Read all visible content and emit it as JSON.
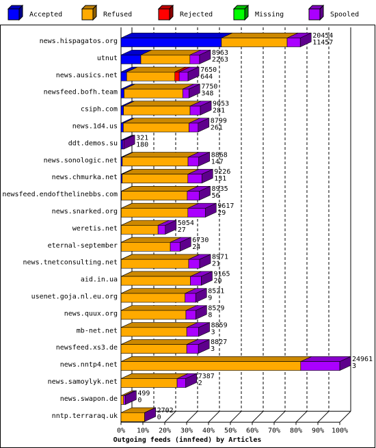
{
  "chart_data": {
    "type": "bar",
    "orientation": "horizontal",
    "stacked": true,
    "xlabel": "Outgoing feeds (innfeed) by Articles",
    "x_ticks": [
      "0%",
      "10%",
      "20%",
      "30%",
      "40%",
      "50%",
      "60%",
      "70%",
      "80%",
      "90%",
      "100%"
    ],
    "legend": {
      "placement": "top"
    },
    "grid": true,
    "colors": {
      "Accepted": "#0000ff",
      "Refused": "#ffaa00",
      "Rejected": "#ff0000",
      "Missing": "#00ff00",
      "Spooled": "#aa00ff"
    },
    "series_names": [
      "Accepted",
      "Refused",
      "Rejected",
      "Missing",
      "Spooled"
    ],
    "categories": [
      "news.hispagatos.org",
      "utnut",
      "news.ausics.net",
      "newsfeed.bofh.team",
      "csiph.com",
      "news.1d4.us",
      "ddt.demos.su",
      "news.sonologic.net",
      "news.chmurka.net",
      "newsfeed.endofthelinebbs.com",
      "news.snarked.org",
      "weretis.net",
      "eternal-september",
      "news.tnetconsulting.net",
      "aid.in.ua",
      "usenet.goja.nl.eu.org",
      "news.quux.org",
      "mb-net.net",
      "newsfeed.xs3.de",
      "news.nntp4.net",
      "news.samoylyk.net",
      "news.swapon.de",
      "nntp.terraraq.uk"
    ],
    "offered": [
      20454,
      8963,
      7650,
      7750,
      9053,
      8799,
      321,
      8868,
      9226,
      8935,
      9617,
      5054,
      6730,
      8971,
      9165,
      8521,
      8529,
      8859,
      8827,
      24961,
      7387,
      499,
      2702
    ],
    "accepted": [
      11457,
      2263,
      644,
      348,
      281,
      261,
      180,
      147,
      131,
      56,
      29,
      27,
      24,
      21,
      20,
      9,
      8,
      3,
      3,
      3,
      2,
      0,
      0
    ],
    "refused": [
      7500,
      5600,
      5500,
      6700,
      7600,
      7500,
      0,
      7500,
      7500,
      7500,
      7600,
      4200,
      5600,
      7700,
      7900,
      7300,
      7400,
      7500,
      7500,
      20500,
      6400,
      300,
      2700
    ],
    "rejected": [
      0,
      0,
      500,
      0,
      0,
      0,
      0,
      0,
      0,
      0,
      0,
      0,
      0,
      0,
      0,
      0,
      0,
      0,
      0,
      0,
      0,
      0,
      0
    ],
    "missing": [
      0,
      0,
      0,
      0,
      0,
      0,
      0,
      0,
      0,
      0,
      0,
      0,
      0,
      0,
      0,
      0,
      0,
      0,
      0,
      0,
      0,
      0,
      0
    ]
  }
}
